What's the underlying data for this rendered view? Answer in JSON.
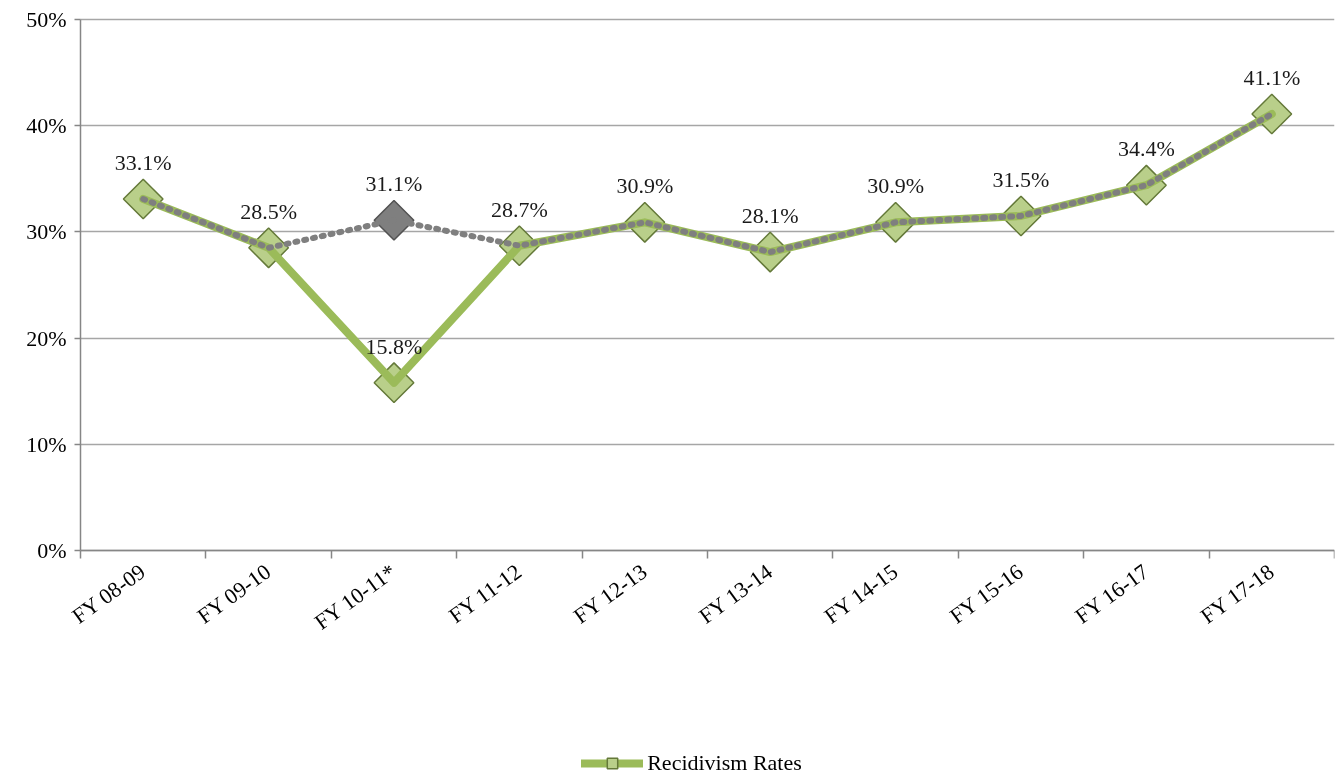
{
  "chart_data": {
    "type": "line",
    "categories": [
      "FY 08-09",
      "FY 09-10",
      "FY 10-11*",
      "FY 11-12",
      "FY 12-13",
      "FY 13-14",
      "FY 14-15",
      "FY 15-16",
      "FY 16-17",
      "FY 17-18"
    ],
    "series": [
      {
        "name": "Recidivism Rates",
        "color": "#9bbb59",
        "line_style": "solid",
        "marker": "diamond",
        "values": [
          33.1,
          28.5,
          15.8,
          28.7,
          30.9,
          28.1,
          30.9,
          31.5,
          34.4,
          41.1
        ],
        "value_labels": [
          "33.1%",
          "28.5%",
          "15.8%",
          "28.7%",
          "30.9%",
          "28.1%",
          "30.9%",
          "31.5%",
          "34.4%",
          "41.1%"
        ]
      },
      {
        "color": "#7f7f7f",
        "line_style": "dotted",
        "marker": "none",
        "values": [
          33.1,
          28.5,
          31.1,
          28.7,
          30.9,
          28.1,
          30.9,
          31.5,
          34.4,
          41.1
        ]
      },
      {
        "type": "scatter",
        "color": "#7f7f7f",
        "marker": "diamond",
        "values": [
          null,
          null,
          31.1,
          null,
          null,
          null,
          null,
          null,
          null,
          null
        ],
        "value_labels": [
          null,
          null,
          "31.1%",
          null,
          null,
          null,
          null,
          null,
          null,
          null
        ]
      }
    ],
    "ylim": [
      0,
      50
    ],
    "yticks": [
      {
        "value": 0,
        "label": "0%"
      },
      {
        "value": 10,
        "label": "10%"
      },
      {
        "value": 20,
        "label": "20%"
      },
      {
        "value": 30,
        "label": "30%"
      },
      {
        "value": 40,
        "label": "40%"
      },
      {
        "value": 50,
        "label": "50%"
      }
    ],
    "grid": "y",
    "legend": "bottom"
  }
}
